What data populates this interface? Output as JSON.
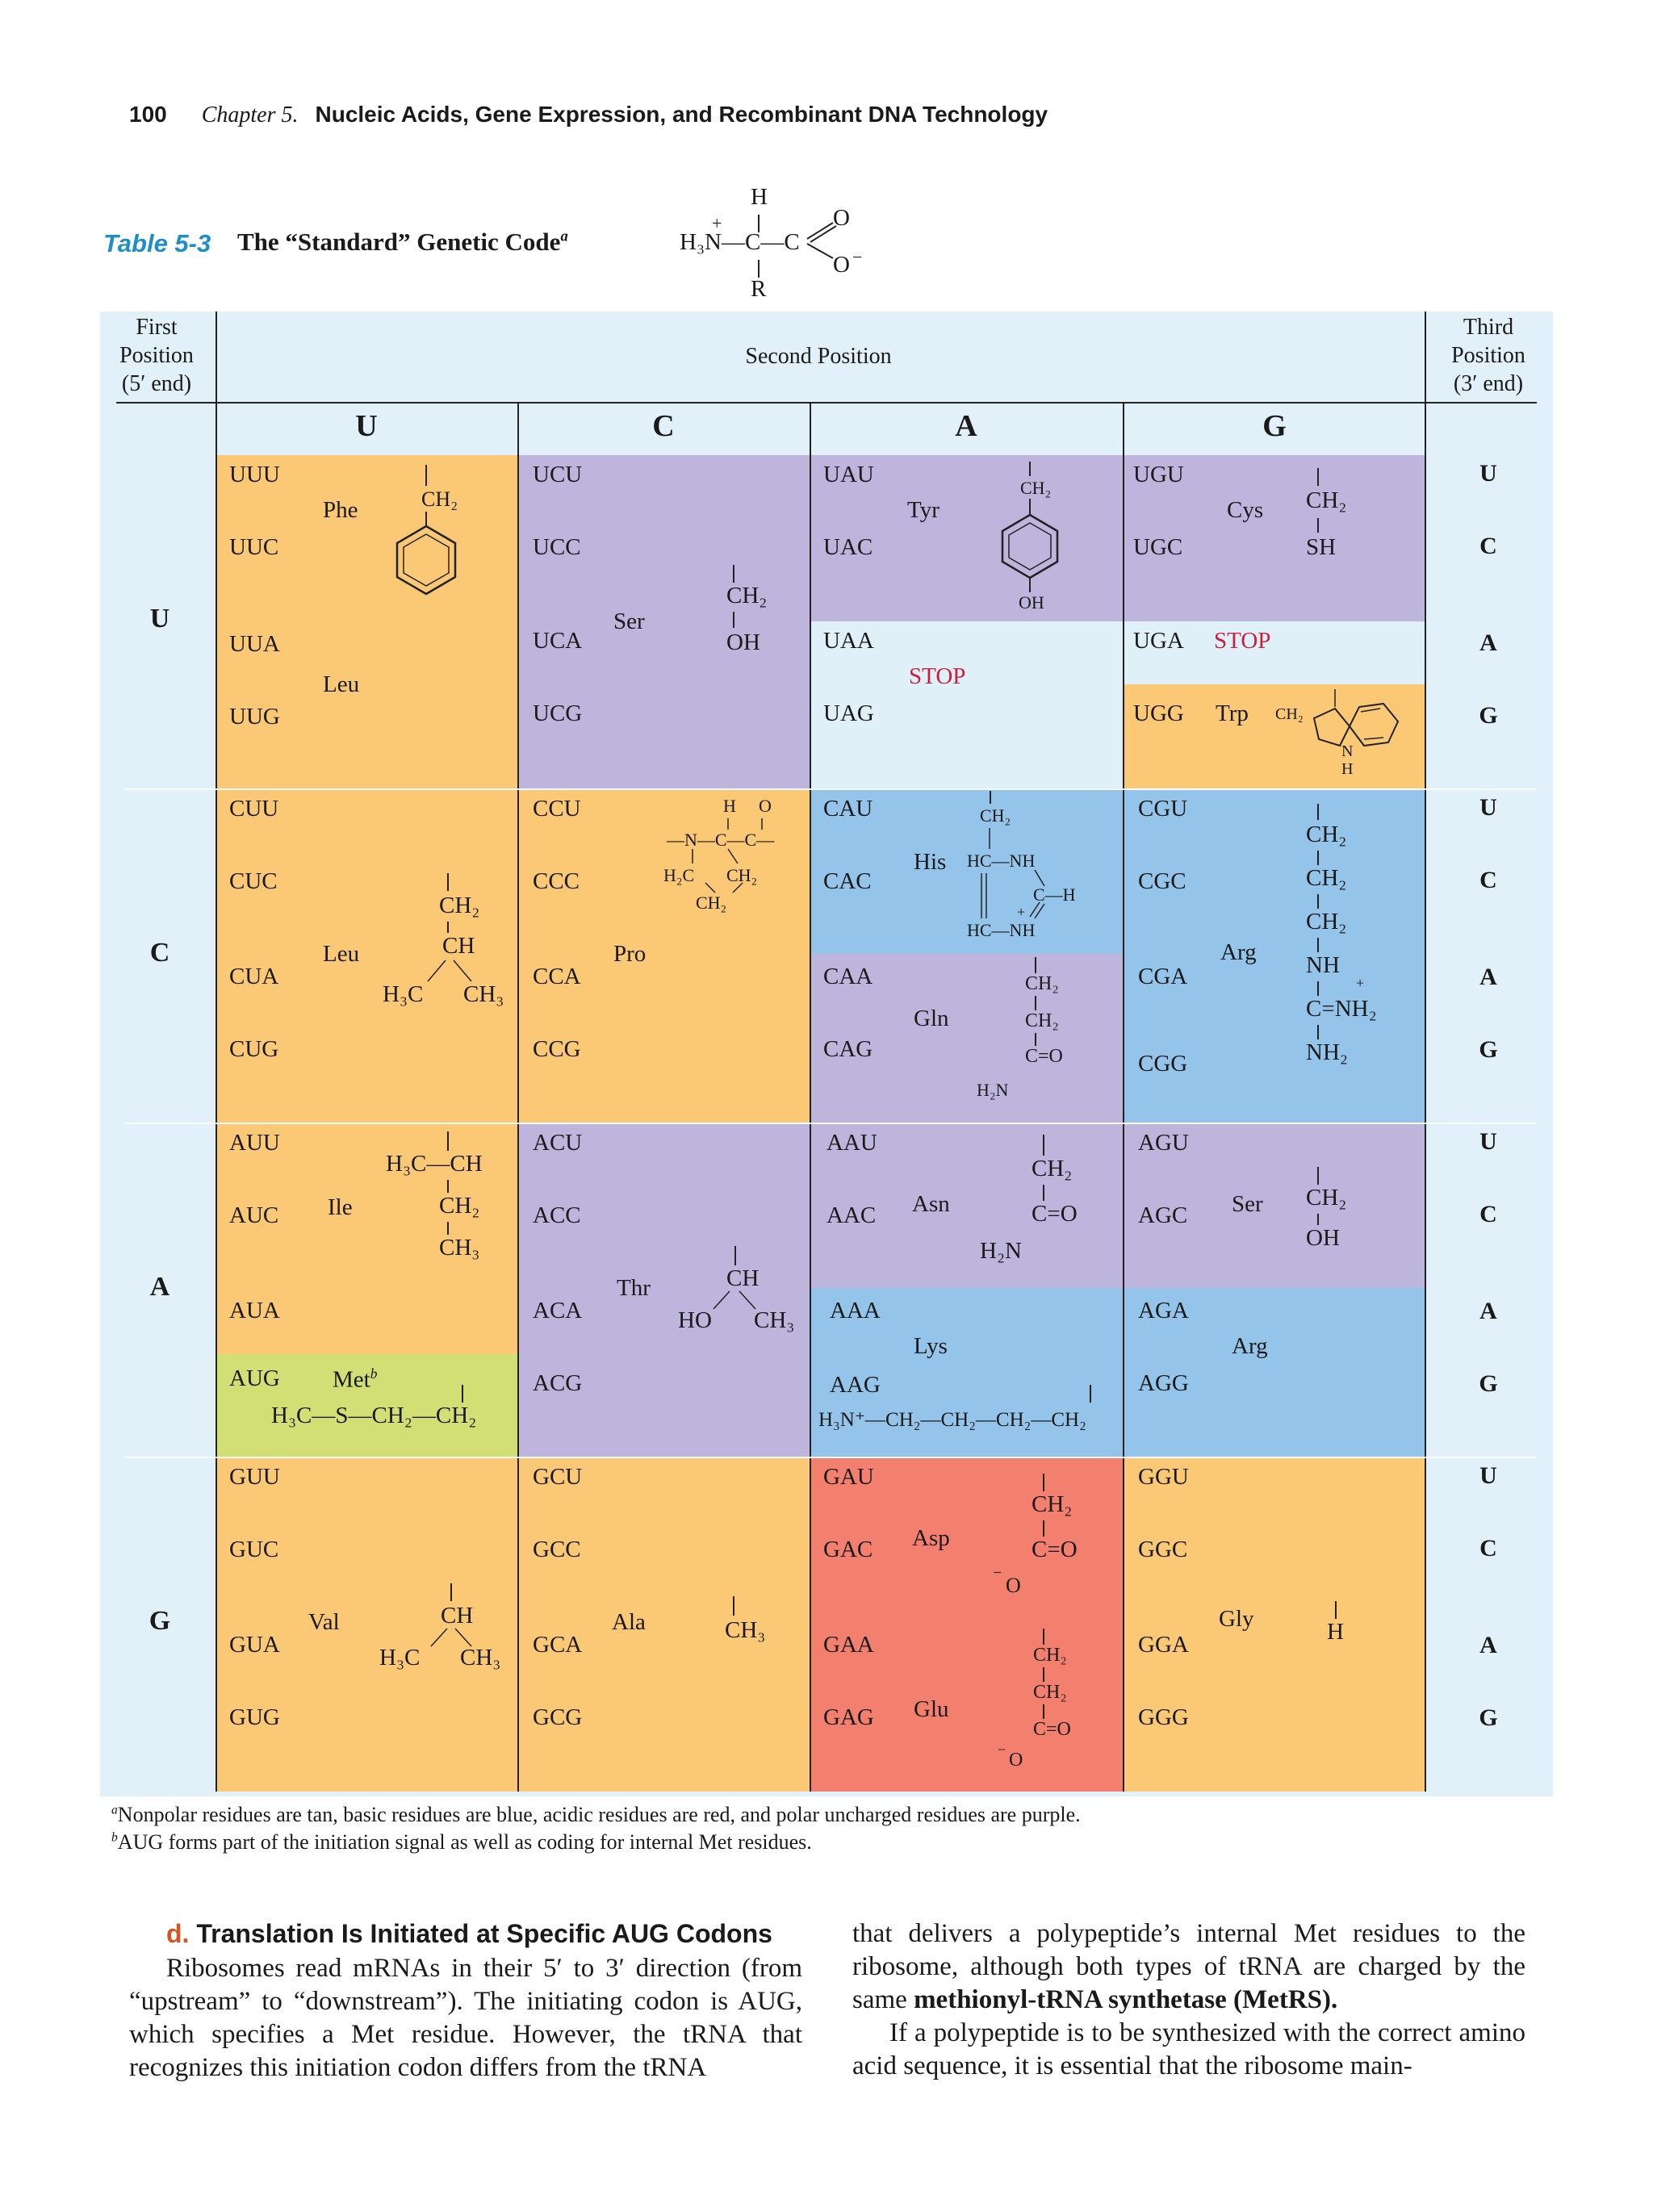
{
  "header": {
    "page_number": "100",
    "chapter": "Chapter 5.",
    "chapter_title": "Nucleic Acids, Gene Expression, and Recombinant DNA Technology"
  },
  "table": {
    "label": "Table 5-3",
    "title": "The “Standard” Genetic Code",
    "title_sup": "a",
    "first_position": [
      "First",
      "Position",
      "(5′ end)"
    ],
    "second_position": "Second Position",
    "third_position": [
      "Third",
      "Position",
      "(3′ end)"
    ],
    "second_bases": [
      "U",
      "C",
      "A",
      "G"
    ],
    "first_bases": [
      "U",
      "C",
      "A",
      "G"
    ],
    "third_bases": [
      "U",
      "C",
      "A",
      "G"
    ],
    "colors": {
      "nonpolar": "#fbc876",
      "polar": "#bdb5db",
      "basic": "#94c4e9",
      "acidic": "#f3806f",
      "start": "#d2df74",
      "stop": "#e0f0f9",
      "background": "#e2f1f9",
      "stop_text": "#c8203c",
      "label": "#1d8fc7"
    },
    "rows": [
      {
        "first": "U",
        "groups": [
          {
            "codons": [
              "UUU",
              "UUC"
            ],
            "aa": "Phe",
            "class": "nonpolar",
            "chem": "CH₂"
          },
          {
            "codons": [
              "UUA",
              "UUG"
            ],
            "aa": "Leu",
            "class": "nonpolar"
          },
          {
            "codons": [
              "UCU",
              "UCC",
              "UCA",
              "UCG"
            ],
            "aa": "Ser",
            "class": "polar",
            "chem": [
              "CH₂",
              "OH"
            ]
          },
          {
            "codons": [
              "UAU",
              "UAC"
            ],
            "aa": "Tyr",
            "class": "polar",
            "chem": [
              "CH₂",
              "OH"
            ]
          },
          {
            "codons": [
              "UAA",
              "UAG"
            ],
            "aa": "STOP",
            "class": "stop"
          },
          {
            "codons": [
              "UGU",
              "UGC"
            ],
            "aa": "Cys",
            "class": "polar",
            "chem": [
              "CH₂",
              "SH"
            ]
          },
          {
            "codons": [
              "UGA"
            ],
            "aa": "STOP",
            "class": "stop"
          },
          {
            "codons": [
              "UGG"
            ],
            "aa": "Trp",
            "class": "nonpolar",
            "chem": [
              "CH₂",
              "N",
              "H"
            ]
          }
        ]
      },
      {
        "first": "C",
        "groups": [
          {
            "codons": [
              "CUU",
              "CUC",
              "CUA",
              "CUG"
            ],
            "aa": "Leu",
            "class": "nonpolar",
            "chem": [
              "CH₂",
              "CH",
              "H₃C",
              "CH₃"
            ]
          },
          {
            "codons": [
              "CCU",
              "CCC",
              "CCA",
              "CCG"
            ],
            "aa": "Pro",
            "class": "nonpolar",
            "chem": [
              "H",
              "O",
              "—N—C—C—",
              "H₂C",
              "CH₂",
              "CH₂"
            ]
          },
          {
            "codons": [
              "CAU",
              "CAC"
            ],
            "aa": "His",
            "class": "basic",
            "chem": [
              "CH₂",
              "HC—NH",
              "C—H",
              "HC—NH",
              "+"
            ]
          },
          {
            "codons": [
              "CAA",
              "CAG"
            ],
            "aa": "Gln",
            "class": "polar",
            "chem": [
              "CH₂",
              "CH₂",
              "C=O",
              "H₂N"
            ]
          },
          {
            "codons": [
              "CGU",
              "CGC",
              "CGA",
              "CGG"
            ],
            "aa": "Arg",
            "class": "basic",
            "chem": [
              "CH₂",
              "CH₂",
              "CH₂",
              "NH",
              "C=NH₂",
              "NH₂",
              "+"
            ]
          }
        ]
      },
      {
        "first": "A",
        "groups": [
          {
            "codons": [
              "AUU",
              "AUC",
              "AUA"
            ],
            "aa": "Ile",
            "class": "nonpolar",
            "chem": [
              "H₃C—CH",
              "CH₂",
              "CH₃"
            ]
          },
          {
            "codons": [
              "AUG"
            ],
            "aa": "Met",
            "aa_sup": "b",
            "class": "start",
            "chem": "H₃C—S—CH₂—CH₂"
          },
          {
            "codons": [
              "ACU",
              "ACC",
              "ACA",
              "ACG"
            ],
            "aa": "Thr",
            "class": "polar",
            "chem": [
              "CH",
              "HO",
              "CH₃"
            ]
          },
          {
            "codons": [
              "AAU",
              "AAC"
            ],
            "aa": "Asn",
            "class": "polar",
            "chem": [
              "CH₂",
              "C=O",
              "H₂N"
            ]
          },
          {
            "codons": [
              "AAA",
              "AAG"
            ],
            "aa": "Lys",
            "class": "basic",
            "chem": "H₃N⁺—CH₂—CH₂—CH₂—CH₂"
          },
          {
            "codons": [
              "AGU",
              "AGC"
            ],
            "aa": "Ser",
            "class": "polar",
            "chem": [
              "CH₂",
              "OH"
            ]
          },
          {
            "codons": [
              "AGA",
              "AGG"
            ],
            "aa": "Arg",
            "class": "basic"
          }
        ]
      },
      {
        "first": "G",
        "groups": [
          {
            "codons": [
              "GUU",
              "GUC",
              "GUA",
              "GUG"
            ],
            "aa": "Val",
            "class": "nonpolar",
            "chem": [
              "CH",
              "H₃C",
              "CH₃"
            ]
          },
          {
            "codons": [
              "GCU",
              "GCC",
              "GCA",
              "GCG"
            ],
            "aa": "Ala",
            "class": "nonpolar",
            "chem": "CH₃"
          },
          {
            "codons": [
              "GAU",
              "GAC"
            ],
            "aa": "Asp",
            "class": "acidic",
            "chem": [
              "CH₂",
              "C=O",
              "O",
              "−"
            ]
          },
          {
            "codons": [
              "GAA",
              "GAG"
            ],
            "aa": "Glu",
            "class": "acidic",
            "chem": [
              "CH₂",
              "CH₂",
              "C=O",
              "O",
              "−"
            ]
          },
          {
            "codons": [
              "GGU",
              "GGC",
              "GGA",
              "GGG"
            ],
            "aa": "Gly",
            "class": "nonpolar",
            "chem": "H"
          }
        ]
      }
    ],
    "aa_structure": {
      "h": "H",
      "n": "H₃N—C—C",
      "plus": "+",
      "o1": "O",
      "o2": "O",
      "minus": "−",
      "r": "R"
    },
    "footnote_a_mark": "a",
    "footnote_a": "Nonpolar residues are tan, basic residues are blue, acidic residues are red, and polar uncharged residues are purple.",
    "footnote_b_mark": "b",
    "footnote_b": "AUG forms part of the initiation signal as well as coding for internal Met residues."
  },
  "body": {
    "heading_letter": "d.",
    "heading_text": "Translation Is Initiated at Specific AUG Codons",
    "col1": "Ribosomes read mRNAs in their 5′ to 3′ direction (from “upstream” to “downstream”). The initiating codon is AUG, which specifies a Met residue. However, the tRNA that recognizes this initiation codon differs from the tRNA",
    "col2_a": "that delivers a polypeptide’s internal Met residues to the ribosome, although both types of tRNA are charged by the same ",
    "col2_bold": "methionyl-tRNA synthetase (MetRS).",
    "col2_b": "If a polypeptide is to be synthesized with the correct amino acid sequence, it is essential that the ribosome main-"
  }
}
